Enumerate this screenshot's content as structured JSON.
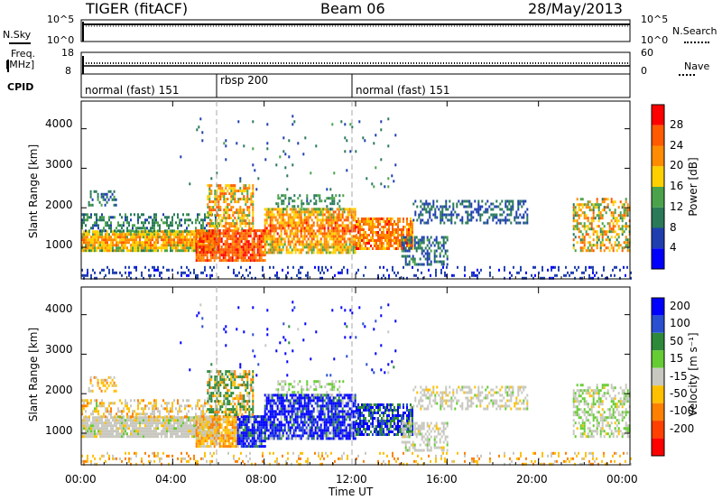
{
  "header": {
    "radar": "TIGER (fitACF)",
    "beam": "Beam 06",
    "date": "28/May/2013"
  },
  "top_panels": {
    "nsky_label": "N.Sky",
    "nsky_ticks": [
      "10^5",
      "10^0"
    ],
    "nsearch_label": "N.Search",
    "nsearch_ticks": [
      "10^5",
      "10^0"
    ],
    "freq_label": "Freq.",
    "freq_unit": "[MHz]",
    "freq_ticks": [
      "18",
      "8"
    ],
    "nave_label": "Nave",
    "nave_ticks": [
      "60",
      "0"
    ],
    "cpid_label": "CPID",
    "cpid_segments": [
      {
        "label": "normal (fast) 151",
        "start_h": 0,
        "end_h": 6
      },
      {
        "label": "rbsp 200",
        "start_h": 6,
        "end_h": 12
      },
      {
        "label": "normal (fast) 151",
        "start_h": 12,
        "end_h": 24
      }
    ]
  },
  "chart_data": [
    {
      "type": "heatmap",
      "name": "power",
      "ylabel": "Slant Range [km]",
      "yticks": [
        1000,
        2000,
        3000,
        4000
      ],
      "ylim": [
        200,
        4700
      ],
      "xlim": [
        0,
        24
      ],
      "colorbar_label": "Power [dB]",
      "colorbar_ticks": [
        "28",
        "24",
        "20",
        "16",
        "12",
        "8",
        "4"
      ],
      "colors": [
        "#ff0000",
        "#ff5a00",
        "#ff8c00",
        "#ffd000",
        "#4aa34a",
        "#2a7a5a",
        "#1f3fb0",
        "#0000ff"
      ]
    },
    {
      "type": "heatmap",
      "name": "velocity",
      "ylabel": "Slant Range [km]",
      "yticks": [
        1000,
        2000,
        3000,
        4000
      ],
      "ylim": [
        200,
        4700
      ],
      "xlim": [
        0,
        24
      ],
      "xlabel": "Time UT",
      "xticks": [
        "00:00",
        "04:00",
        "08:00",
        "12:00",
        "16:00",
        "20:00",
        "00:00"
      ],
      "colorbar_label": "Velocity [m s⁻¹]",
      "colorbar_ticks": [
        "200",
        "100",
        "50",
        "15",
        "-15",
        "-50",
        "-100",
        "-200"
      ],
      "colors": [
        "#0000ff",
        "#2a4fd0",
        "#2e8a3a",
        "#66cc33",
        "#c8c8c0",
        "#ffc000",
        "#ff8000",
        "#ff4000",
        "#ff0000"
      ]
    }
  ]
}
